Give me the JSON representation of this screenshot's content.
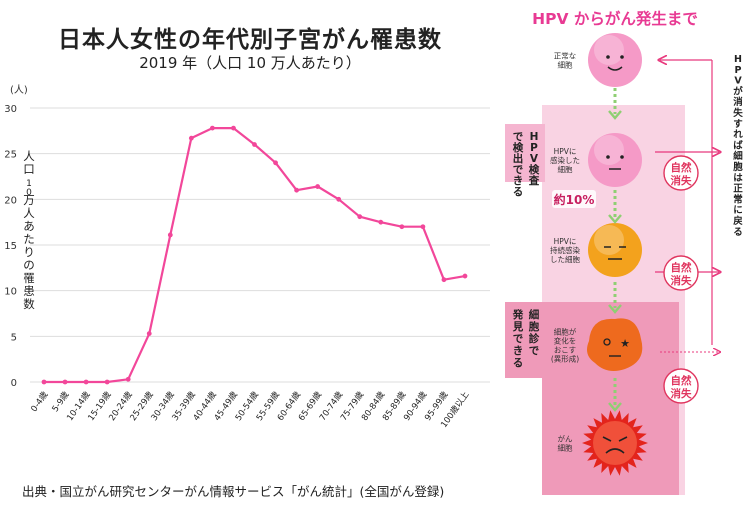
{
  "chart": {
    "title": "日本人女性の年代別子宮がん罹患数",
    "subtitle": "2019 年（人口 10 万人あたり）",
    "ylabel": "人口10万人あたりの罹患数",
    "yunit": "(人)",
    "source": "出典・国立がん研究センターがん情報サービス「がん統計」(全国がん登録)"
  },
  "chart_data": {
    "type": "line",
    "title": "日本人女性の年代別子宮がん罹患数",
    "subtitle": "2019 年（人口 10 万人あたり）",
    "xlabel": "",
    "ylabel": "人口10万人あたりの罹患数",
    "yunit": "(人)",
    "categories": [
      "0-4歳",
      "5-9歳",
      "10-14歳",
      "15-19歳",
      "20-24歳",
      "25-29歳",
      "30-34歳",
      "35-39歳",
      "40-44歳",
      "45-49歳",
      "50-54歳",
      "55-59歳",
      "60-64歳",
      "65-69歳",
      "70-74歳",
      "75-79歳",
      "80-84歳",
      "85-89歳",
      "90-94歳",
      "95-99歳",
      "100歳以上"
    ],
    "values": [
      0,
      0,
      0,
      0,
      0.3,
      5.3,
      16.1,
      26.7,
      27.8,
      27.8,
      26,
      24,
      21,
      21.4,
      20,
      18.1,
      17.5,
      17,
      17,
      11.2,
      11.6
    ],
    "ylim": [
      0,
      30
    ],
    "yticks": [
      0,
      5,
      10,
      15,
      20,
      25,
      30
    ],
    "grid": true,
    "line_color": "#f2479a",
    "grid_color": "#dddddd"
  },
  "diagram": {
    "title": "HPV からがん発生まで",
    "title_color": "#e83a93",
    "stages": [
      {
        "label_lines": [
          "正常な",
          "細胞"
        ],
        "face": "smile",
        "color": "#f59ac7",
        "icon": "smiling-cell-icon"
      },
      {
        "label_lines": [
          "HPVに",
          "感染した",
          "細胞"
        ],
        "face": "neutral",
        "color": "#f59ac7",
        "icon": "neutral-cell-icon"
      },
      {
        "label_lines": [
          "HPVに",
          "持続感染",
          "した細胞"
        ],
        "face": "flat",
        "color": "#f3a21d",
        "icon": "orange-cell-icon"
      },
      {
        "label_lines": [
          "細胞が",
          "変化を",
          "おこす",
          "(異形成)"
        ],
        "face": "star",
        "color": "#ee6a1e",
        "icon": "dysplasia-cell-icon"
      },
      {
        "label_lines": [
          "がん",
          "細胞"
        ],
        "face": "angry",
        "color": "#e3241c",
        "icon": "cancer-cell-icon"
      }
    ],
    "percent_label": "約10%",
    "natural_disappear": [
      "自然",
      "消失"
    ],
    "hpv_test_label": "HPV検査で検出できる",
    "cytology_label": "細胞診で発見できる",
    "return_label": "HPVが消失すれば細胞は正常に戻る"
  }
}
